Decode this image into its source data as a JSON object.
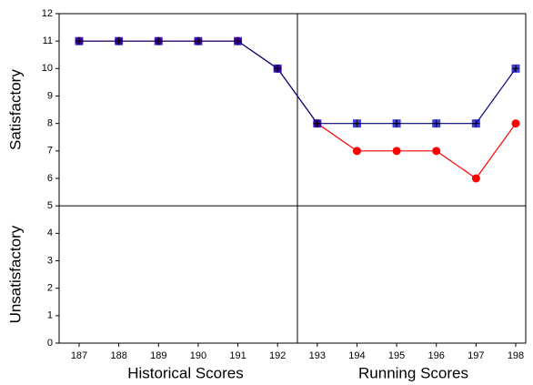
{
  "chart_data": {
    "type": "line",
    "categories": [
      "187",
      "188",
      "189",
      "190",
      "191",
      "192",
      "193",
      "194",
      "195",
      "196",
      "197",
      "198"
    ],
    "series": [
      {
        "color": "#ff0000",
        "marker": "circle",
        "values": [
          11,
          11,
          11,
          11,
          11,
          10,
          8,
          7,
          7,
          7,
          6,
          8
        ]
      },
      {
        "color": "#000080",
        "marker_color": "#0000cc",
        "marker": "square",
        "values": [
          11,
          11,
          11,
          11,
          11,
          10,
          8,
          8,
          8,
          8,
          8,
          10
        ]
      }
    ],
    "ylim": [
      0,
      12
    ],
    "yticks": [
      0,
      1,
      2,
      3,
      4,
      5,
      6,
      7,
      8,
      9,
      10,
      11,
      12
    ],
    "hline": 5,
    "y_labels": {
      "upper": "Satisfactory",
      "lower": "Unsatisfactory"
    },
    "x_labels": {
      "left": "Historical Scores",
      "right": "Running Scores"
    }
  }
}
